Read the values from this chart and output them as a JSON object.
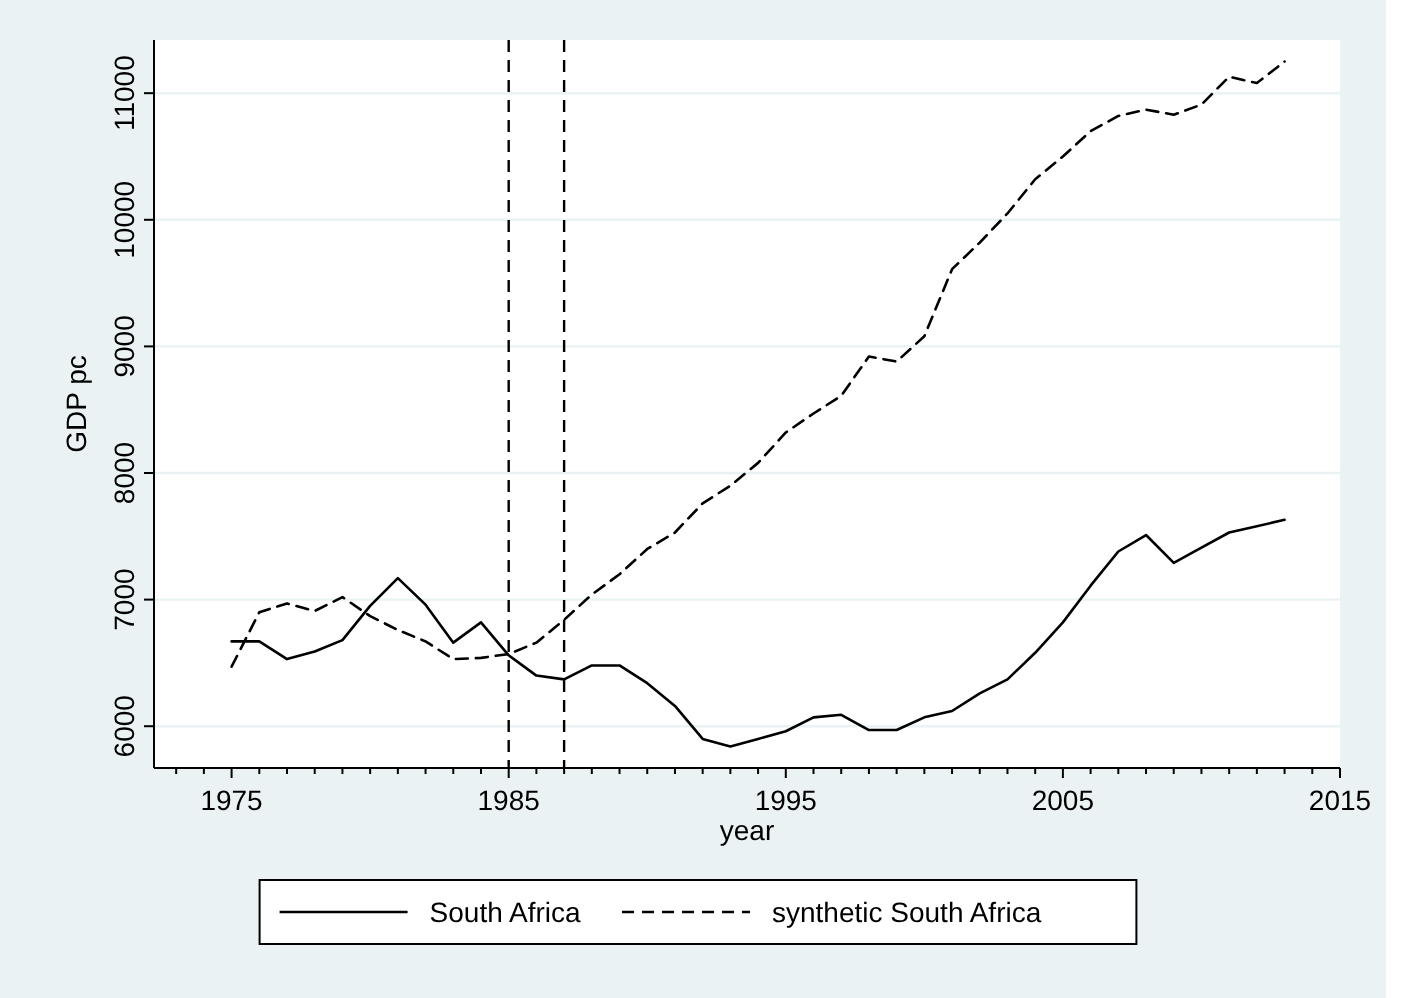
{
  "chart_data": {
    "type": "line",
    "xlabel": "year",
    "ylabel": "GDP pc",
    "x": [
      1975,
      1976,
      1977,
      1978,
      1979,
      1980,
      1981,
      1982,
      1983,
      1984,
      1985,
      1986,
      1987,
      1988,
      1989,
      1990,
      1991,
      1992,
      1993,
      1994,
      1995,
      1996,
      1997,
      1998,
      1999,
      2000,
      2001,
      2002,
      2003,
      2004,
      2005,
      2006,
      2007,
      2008,
      2009,
      2010,
      2011,
      2012,
      2013
    ],
    "series": [
      {
        "name": "South Africa",
        "color": "#000000",
        "line_style": "solid",
        "values": [
          6670,
          6670,
          6530,
          6590,
          6680,
          6950,
          7170,
          6960,
          6660,
          6820,
          6560,
          6400,
          6370,
          6480,
          6480,
          6340,
          6160,
          5900,
          5840,
          5900,
          5960,
          6070,
          6090,
          5970,
          5970,
          6070,
          6120,
          6260,
          6370,
          6580,
          6820,
          7110,
          7380,
          7510,
          7290,
          7410,
          7530,
          7580,
          7630
        ]
      },
      {
        "name": "synthetic South Africa",
        "color": "#000000",
        "line_style": "dashed",
        "values": [
          6470,
          6900,
          6970,
          6910,
          7020,
          6870,
          6760,
          6670,
          6530,
          6540,
          6570,
          6660,
          6840,
          7040,
          7200,
          7400,
          7530,
          7760,
          7900,
          8080,
          8320,
          8470,
          8610,
          8920,
          8880,
          9080,
          9610,
          9820,
          10050,
          10320,
          10500,
          10700,
          10820,
          10870,
          10830,
          10910,
          11130,
          11080,
          11250
        ]
      }
    ],
    "xlim": [
      1972.2,
      2015
    ],
    "xticks": [
      {
        "value": 1973,
        "label": null
      },
      {
        "value": 1974,
        "label": null
      },
      1975,
      {
        "value": 1976,
        "label": null
      },
      {
        "value": 1977,
        "label": null
      },
      {
        "value": 1978,
        "label": null
      },
      {
        "value": 1979,
        "label": null
      },
      {
        "value": 1980,
        "label": null
      },
      {
        "value": 1981,
        "label": null
      },
      {
        "value": 1982,
        "label": null
      },
      {
        "value": 1983,
        "label": null
      },
      {
        "value": 1984,
        "label": null
      },
      1985,
      {
        "value": 1986,
        "label": null
      },
      {
        "value": 1987,
        "label": null
      },
      {
        "value": 1988,
        "label": null
      },
      {
        "value": 1989,
        "label": null
      },
      {
        "value": 1990,
        "label": null
      },
      {
        "value": 1991,
        "label": null
      },
      {
        "value": 1992,
        "label": null
      },
      {
        "value": 1993,
        "label": null
      },
      {
        "value": 1994,
        "label": null
      },
      1995,
      {
        "value": 1996,
        "label": null
      },
      {
        "value": 1997,
        "label": null
      },
      {
        "value": 1998,
        "label": null
      },
      {
        "value": 1999,
        "label": null
      },
      {
        "value": 2000,
        "label": null
      },
      {
        "value": 2001,
        "label": null
      },
      {
        "value": 2002,
        "label": null
      },
      {
        "value": 2003,
        "label": null
      },
      {
        "value": 2004,
        "label": null
      },
      2005,
      {
        "value": 2006,
        "label": null
      },
      {
        "value": 2007,
        "label": null
      },
      {
        "value": 2008,
        "label": null
      },
      {
        "value": 2009,
        "label": null
      },
      {
        "value": 2010,
        "label": null
      },
      {
        "value": 2011,
        "label": null
      },
      {
        "value": 2012,
        "label": null
      },
      {
        "value": 2013,
        "label": null
      },
      {
        "value": 2014,
        "label": null
      },
      2015
    ],
    "ylim": [
      5670,
      11420
    ],
    "yticks": [
      6000,
      7000,
      8000,
      9000,
      10000,
      11000
    ],
    "grid": "y",
    "legend": "bottom",
    "marker": "none",
    "ref_lines": [
      {
        "axis": "x",
        "value": 1985,
        "line_style": "dashed",
        "color": "#000000"
      },
      {
        "axis": "x",
        "value": 1987,
        "line_style": "dashed",
        "color": "#000000"
      }
    ]
  }
}
